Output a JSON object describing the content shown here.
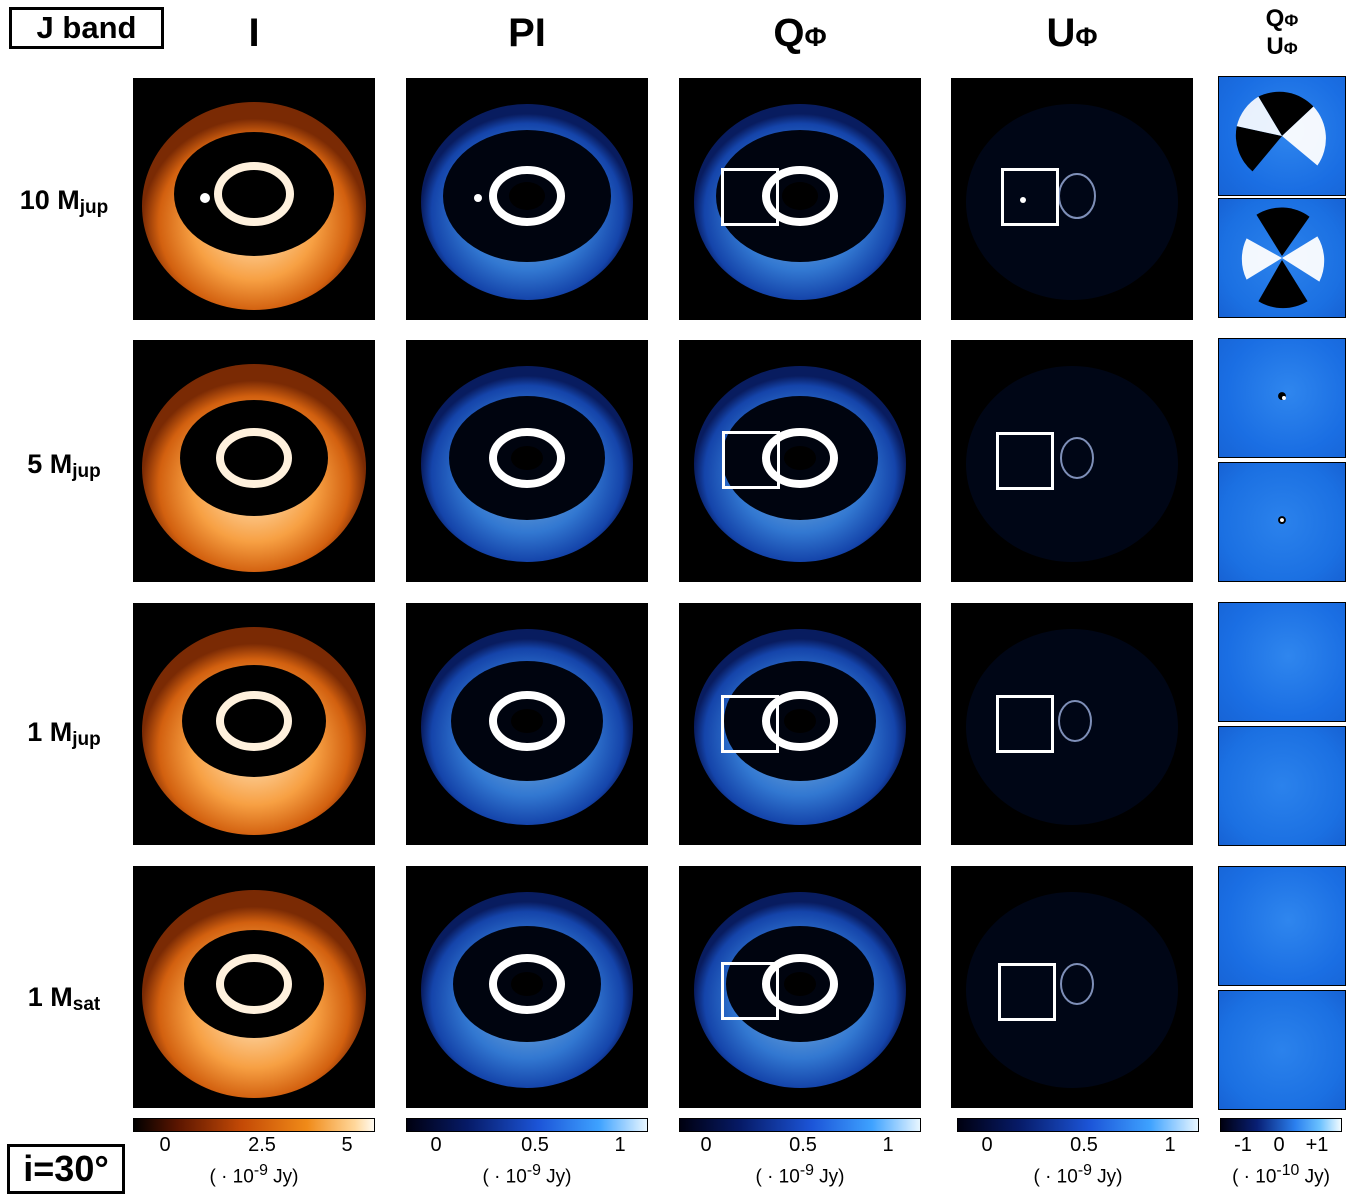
{
  "band_label": "J band",
  "inclination_label": "i=30°",
  "columns": {
    "I": {
      "main": "I"
    },
    "PI": {
      "main": "PI"
    },
    "Qphi": {
      "main": "Q",
      "sym": "Φ"
    },
    "Uphi": {
      "main": "U",
      "sym": "Φ"
    },
    "stack": {
      "q_main": "Q",
      "q_sym": "Φ",
      "u_main": "U",
      "u_sym": "Φ"
    }
  },
  "rows": [
    {
      "main": "10 M",
      "sub": "jup"
    },
    {
      "main": "5 M",
      "sub": "jup"
    },
    {
      "main": "1 M",
      "sub": "jup"
    },
    {
      "main": "1 M",
      "sub": "sat"
    }
  ],
  "colorbars": {
    "I": {
      "ticks": [
        "0",
        "2.5",
        "5"
      ],
      "unit_prefix": "( · 10",
      "unit_exp": "-9",
      "unit_suffix": " Jy)"
    },
    "PI": {
      "ticks": [
        "0",
        "0.5",
        "1"
      ],
      "unit_prefix": "( · 10",
      "unit_exp": "-9",
      "unit_suffix": " Jy)"
    },
    "Qphi": {
      "ticks": [
        "0",
        "0.5",
        "1"
      ],
      "unit_prefix": "( · 10",
      "unit_exp": "-9",
      "unit_suffix": " Jy)"
    },
    "Uphi": {
      "ticks": [
        "0",
        "0.5",
        "1"
      ],
      "unit_prefix": "( · 10",
      "unit_exp": "-9",
      "unit_suffix": " Jy)"
    },
    "stack": {
      "ticks": [
        "-1",
        "0",
        "+1"
      ],
      "unit_prefix": "( · 10",
      "unit_exp": "-10",
      "unit_suffix": " Jy)"
    }
  },
  "colors": {
    "I_colormap": "#e87a12",
    "PI_colormap": "#2b7fff",
    "residual_colormap": "#1b70e2"
  }
}
